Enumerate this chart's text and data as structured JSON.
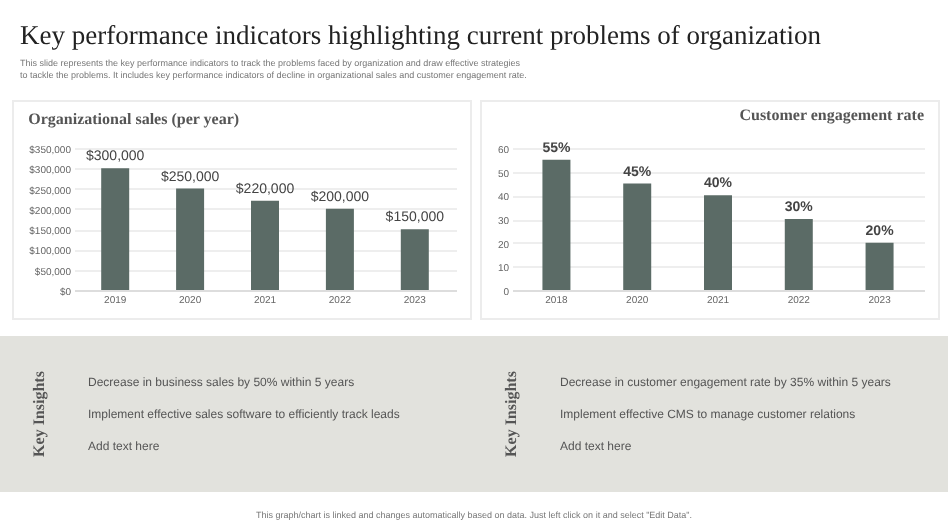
{
  "chart_data": [
    {
      "type": "other",
      "title": "Key performance indicators highlighting current problems of organization",
      "subtitle": "This slide represents the key performance indicators to track the problems faced by organization and draw effective strategies to tackle the problems. It includes key performance indicators of decline in organizational sales and customer engagement rate."
    },
    {
      "type": "bar",
      "title": "Organizational sales (per year)",
      "categories": [
        "2019",
        "2020",
        "2021",
        "2022",
        "2023"
      ],
      "values": [
        300000,
        250000,
        220000,
        200000,
        150000
      ],
      "value_labels": [
        "$300,000",
        "$250,000",
        "$220,000",
        "$200,000",
        "$150,000"
      ],
      "color": "#5b6b66",
      "ylim": [
        0,
        350000
      ],
      "yticks": [
        {
          "value": 0,
          "label": "$0"
        },
        {
          "value": 50000,
          "label": "$50,000"
        },
        {
          "value": 100000,
          "label": "$100,000"
        },
        {
          "value": 150000,
          "label": "$150,000"
        },
        {
          "value": 200000,
          "label": "$200,000"
        },
        {
          "value": 250000,
          "label": "$250,000"
        },
        {
          "value": 300000,
          "label": "$300,000"
        },
        {
          "value": 350000,
          "label": "$350,000"
        }
      ],
      "grid": "y"
    },
    {
      "type": "bar",
      "title": "Customer engagement rate",
      "categories": [
        "2018",
        "2020",
        "2021",
        "2022",
        "2023"
      ],
      "values": [
        55,
        45,
        40,
        30,
        20
      ],
      "value_labels": [
        "55%",
        "45%",
        "40%",
        "30%",
        "20%"
      ],
      "color": "#5b6b66",
      "ylim": [
        0,
        60
      ],
      "yticks": [
        0,
        10,
        20,
        30,
        40,
        50,
        60
      ],
      "grid": "y"
    },
    {
      "type": "other",
      "title": "Key Insights",
      "annotations": [
        "Decrease in business sales by 50% within 5 years",
        "Implement effective sales software to efficiently track leads",
        "Add text here"
      ]
    },
    {
      "type": "other",
      "title": "Key Insights",
      "annotations": [
        "Decrease in customer engagement rate by 35% within 5 years",
        "Implement effective CMS to manage customer relations",
        "Add text here"
      ]
    },
    {
      "type": "other",
      "annotations": [
        "This graph/chart is linked and changes automatically based on data. Just left click on it and select \"Edit Data\"."
      ]
    }
  ]
}
